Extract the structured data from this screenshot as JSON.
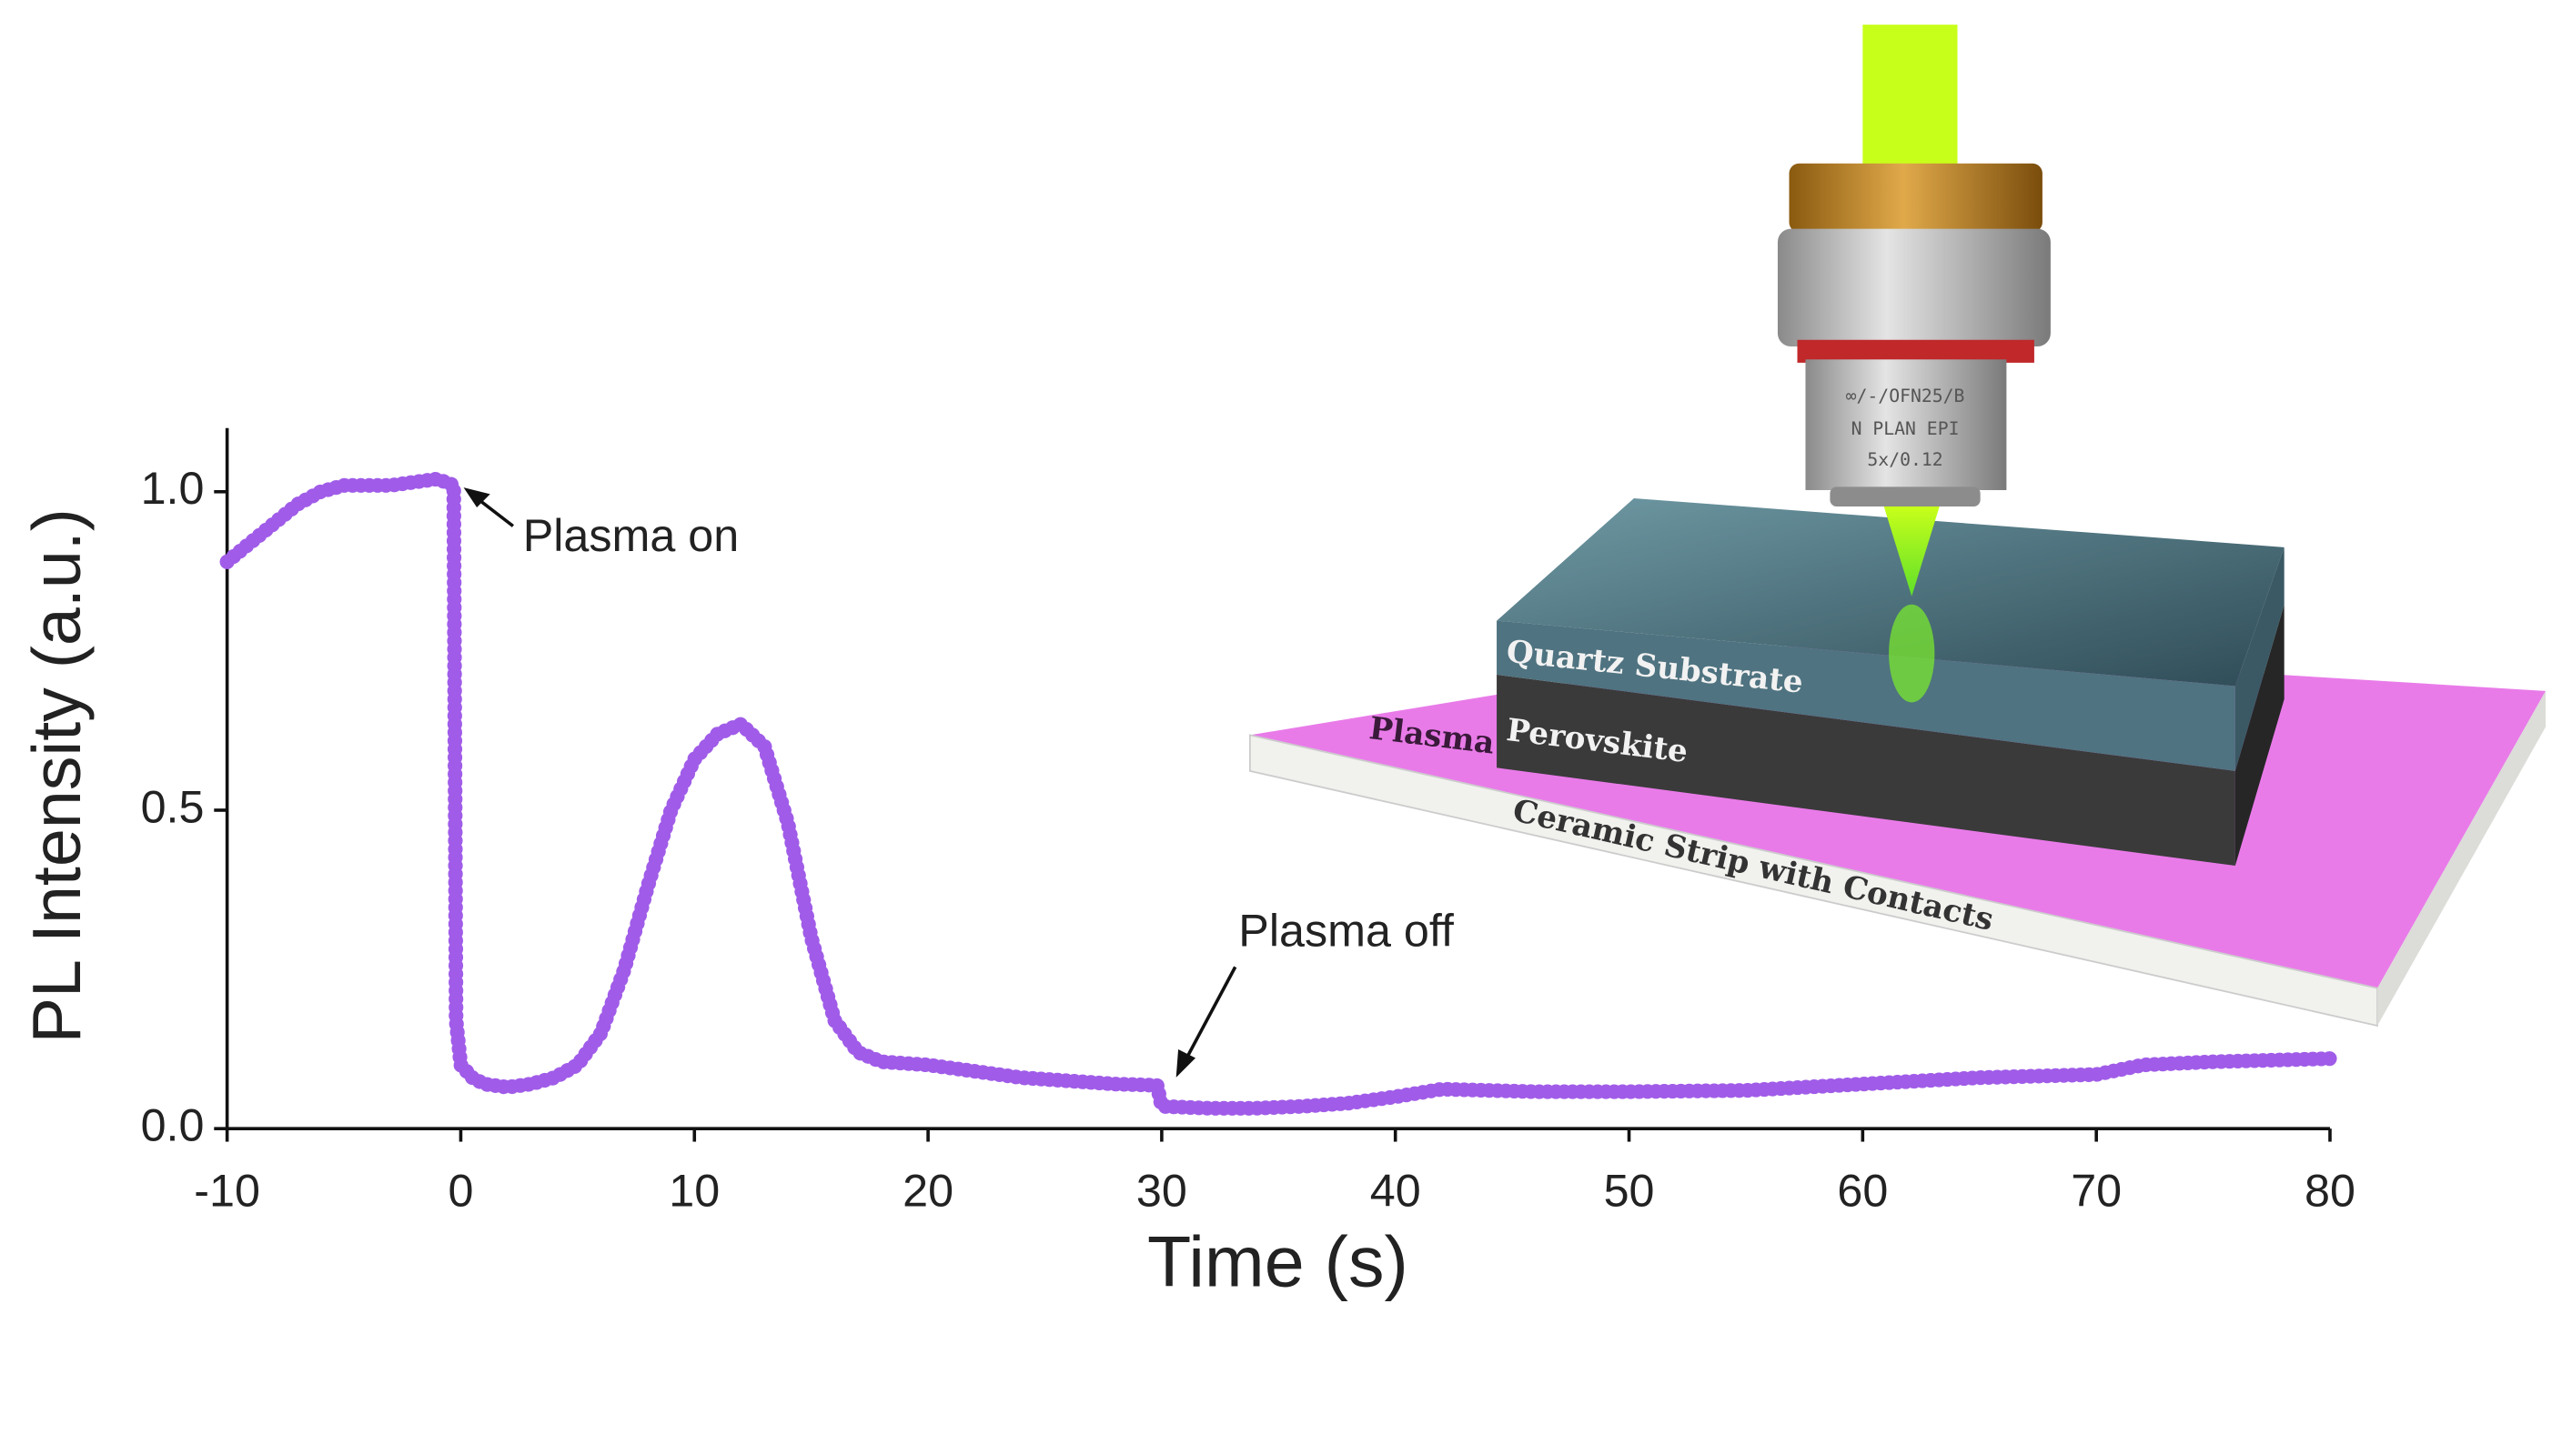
{
  "chart_data": {
    "type": "line",
    "x_label": "Time (s)",
    "y_label": "PL Intensity (a.u.)",
    "color": "#a05ce8",
    "x": [
      -10,
      -9,
      -8,
      -7,
      -6,
      -5,
      -4,
      -3,
      -2,
      -1,
      -0.3,
      -0.2,
      0,
      0.5,
      1,
      2,
      3,
      4,
      5,
      6,
      7,
      8,
      9,
      10,
      11,
      12,
      13,
      14,
      15,
      16,
      17,
      18,
      20,
      22,
      24,
      26,
      28,
      29.8,
      30,
      32,
      34,
      36,
      38,
      40,
      42,
      44,
      46,
      50,
      55,
      60,
      65,
      70,
      72,
      75,
      80
    ],
    "values": [
      0.89,
      0.92,
      0.95,
      0.98,
      1.0,
      1.01,
      1.01,
      1.01,
      1.015,
      1.02,
      1.01,
      0.17,
      0.1,
      0.08,
      0.07,
      0.065,
      0.07,
      0.08,
      0.1,
      0.15,
      0.25,
      0.38,
      0.5,
      0.58,
      0.62,
      0.635,
      0.6,
      0.48,
      0.3,
      0.17,
      0.12,
      0.105,
      0.1,
      0.09,
      0.08,
      0.075,
      0.07,
      0.068,
      0.035,
      0.032,
      0.032,
      0.035,
      0.04,
      0.05,
      0.062,
      0.06,
      0.058,
      0.058,
      0.06,
      0.07,
      0.08,
      0.085,
      0.1,
      0.105,
      0.11
    ],
    "xlim": [
      -10,
      80
    ],
    "ylim": [
      0,
      1.1
    ],
    "xticks": [
      -10,
      0,
      10,
      20,
      30,
      40,
      50,
      60,
      70,
      80
    ],
    "yticks": [
      {
        "value": 0,
        "label": "0.0"
      },
      {
        "value": 0.5,
        "label": "0.5"
      },
      {
        "value": 1,
        "label": "1.0"
      }
    ],
    "annotations": [
      "Plasma on",
      "Plasma off"
    ]
  },
  "illustration": {
    "objective_labels": [
      "∞/-/OFN25/B",
      "N PLAN EPI",
      "5x/0.12"
    ],
    "layers": [
      "Quartz Substrate",
      "Perovskite",
      "Plasma",
      "Ceramic Strip with Contacts"
    ]
  }
}
